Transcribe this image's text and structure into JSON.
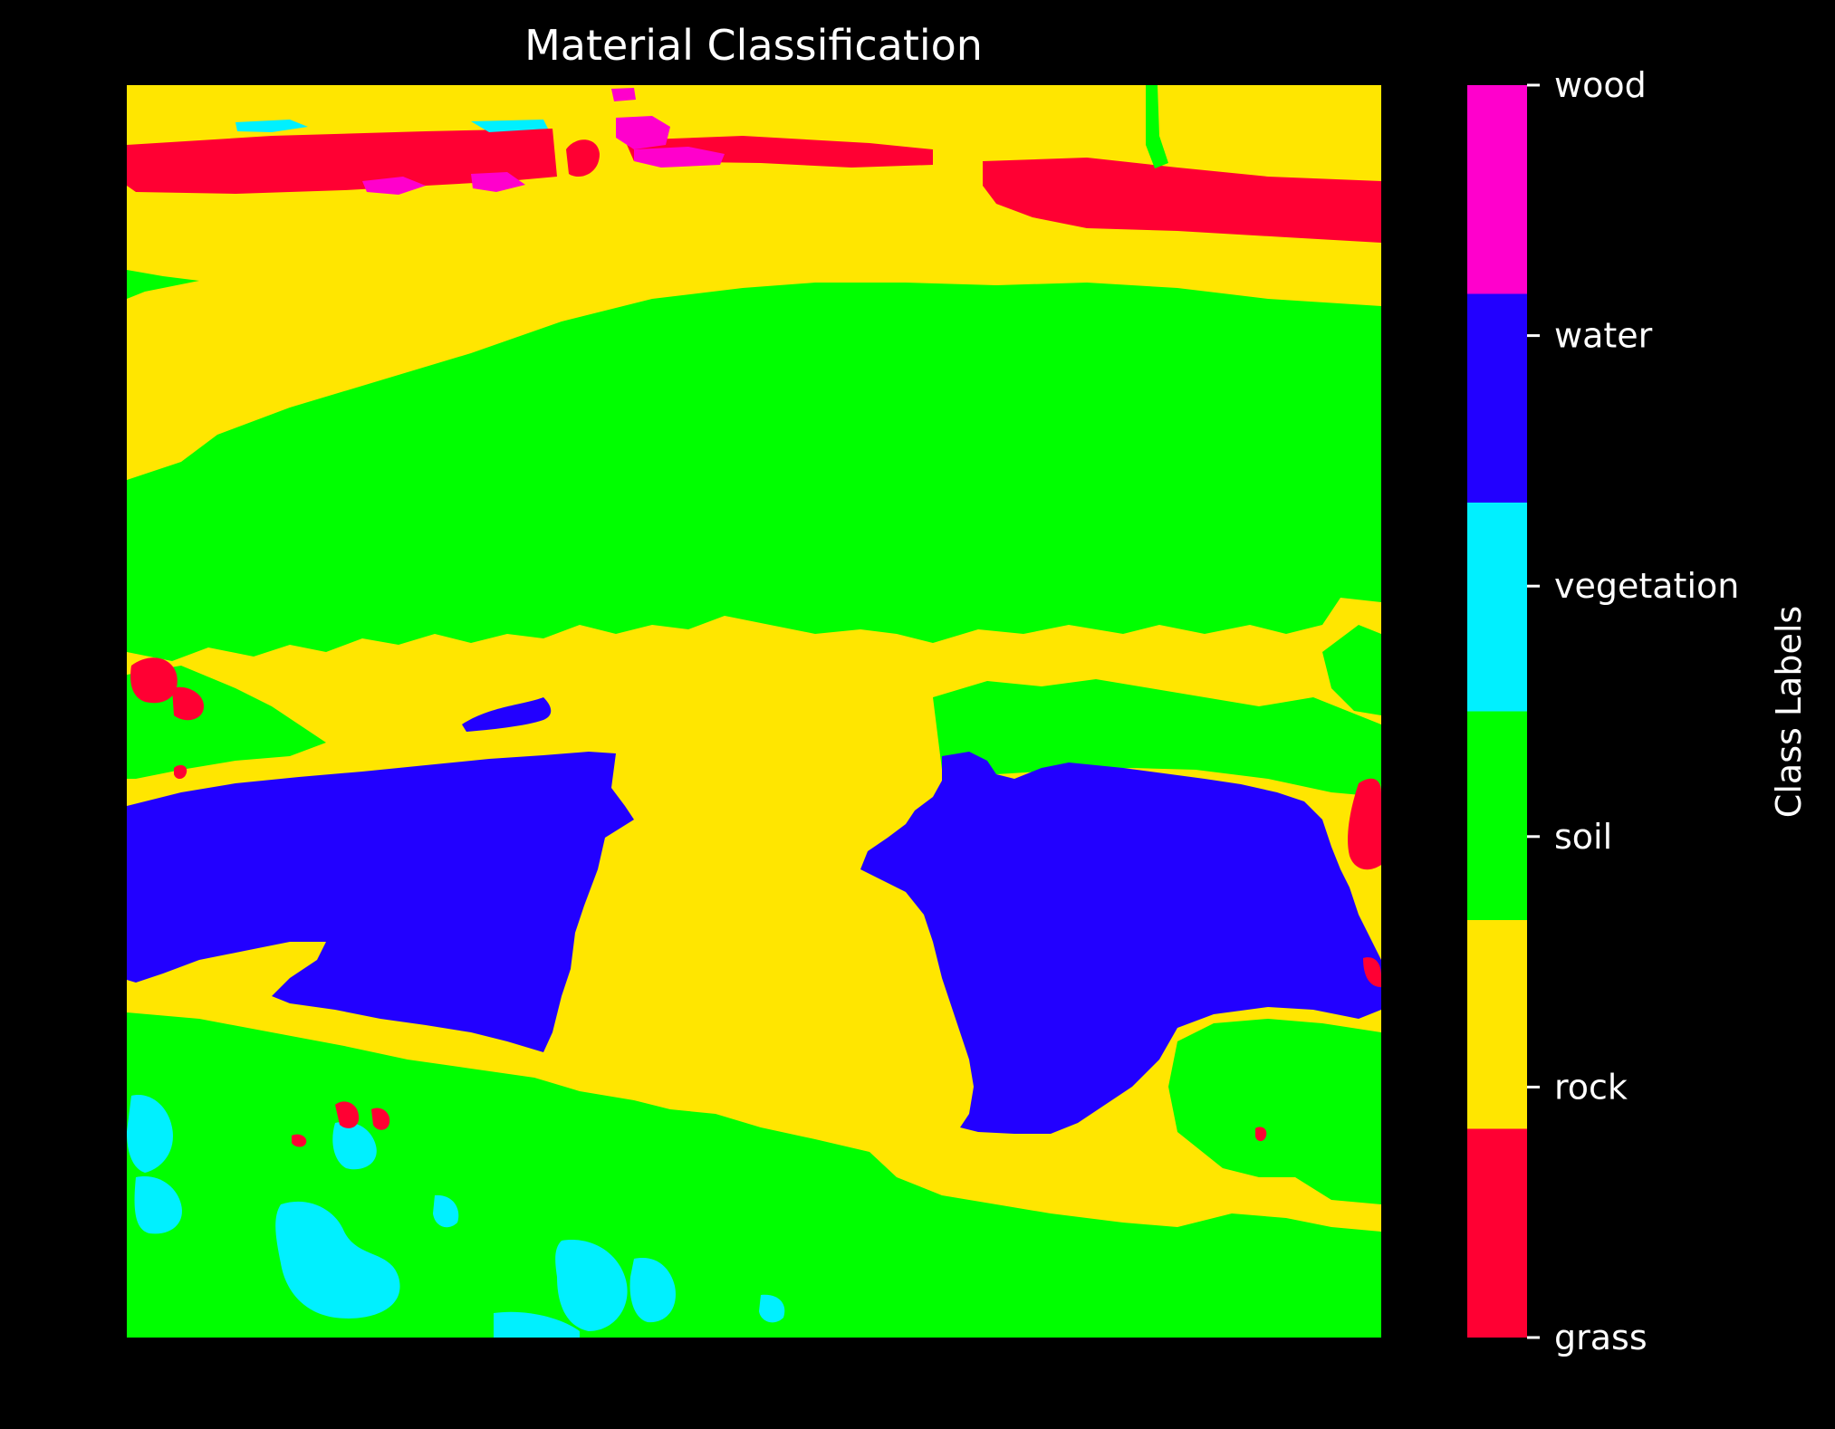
{
  "chart_data": {
    "type": "heatmap",
    "title": "Material Classification",
    "colorbar": {
      "label": "Class Labels",
      "position": "right",
      "classes": [
        {
          "name": "grass",
          "color": "#ff0033"
        },
        {
          "name": "rock",
          "color": "#ffe600"
        },
        {
          "name": "soil",
          "color": "#00ff00"
        },
        {
          "name": "vegetation",
          "color": "#00f0ff"
        },
        {
          "name": "water",
          "color": "#2200ff"
        },
        {
          "name": "wood",
          "color": "#ff00cc"
        }
      ]
    },
    "axes_visible": false,
    "grid": false,
    "background": "#000000"
  }
}
